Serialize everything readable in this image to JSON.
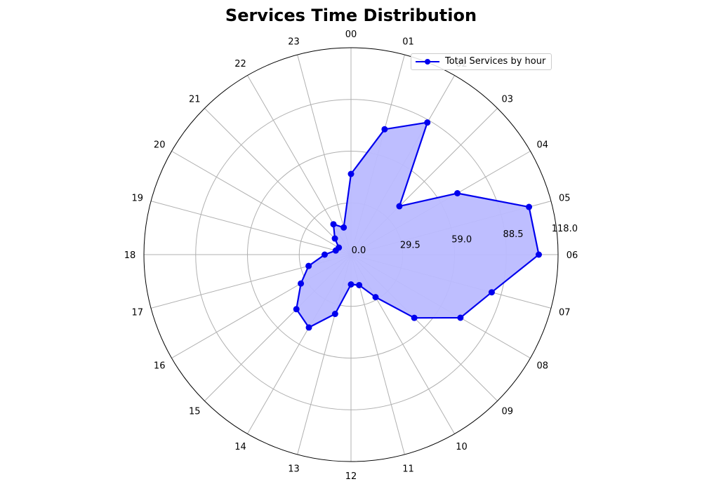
{
  "chart_data": {
    "type": "radar",
    "title": "Services Time Distribution",
    "categories": [
      "00",
      "01",
      "02",
      "03",
      "04",
      "05",
      "06",
      "07",
      "08",
      "09",
      "10",
      "11",
      "12",
      "13",
      "14",
      "15",
      "16",
      "17",
      "18",
      "19",
      "20",
      "21",
      "22",
      "23"
    ],
    "series": [
      {
        "name": "Total Services by hour",
        "values": [
          46,
          74,
          87,
          39,
          70,
          105,
          107,
          83,
          72,
          51,
          28,
          18,
          17,
          35,
          48,
          44,
          33,
          25,
          15,
          9,
          8,
          13,
          20,
          16
        ],
        "line_color": "#0000ee",
        "fill_color": "#bbbbff"
      }
    ],
    "r_ticks": [
      0.0,
      29.5,
      59.0,
      88.5,
      118.0
    ],
    "r_tick_labels": [
      "0.0",
      "29.5",
      "59.0",
      "88.5",
      "118.0"
    ],
    "rlim": [
      0,
      118
    ],
    "grid": true,
    "legend_position": "top-right"
  }
}
